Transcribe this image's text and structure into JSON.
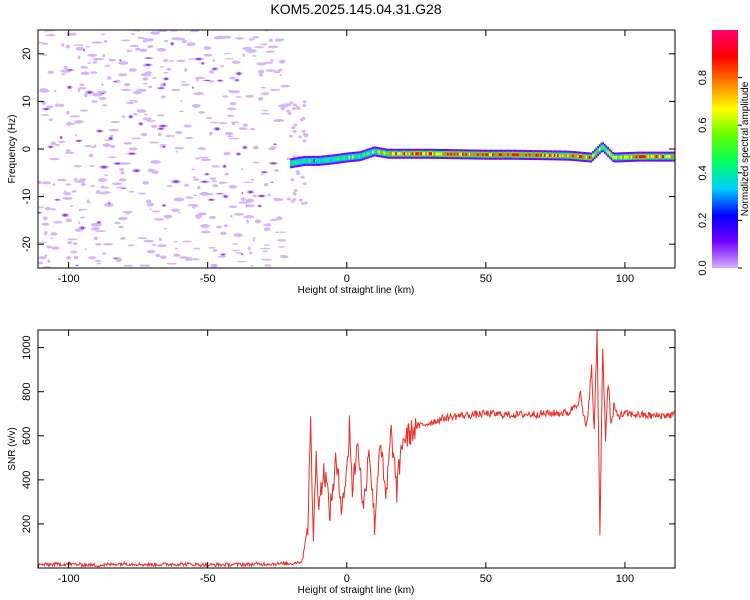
{
  "figure_title": "KOM5.2025.145.04.31.G28",
  "chart_data": [
    {
      "type": "heatmap",
      "xlabel": "Height of straight line (km)",
      "ylabel": "Frequency (Hz)",
      "xlim": [
        -111,
        118
      ],
      "ylim": [
        -25,
        25
      ],
      "xticks": [
        -100,
        -50,
        0,
        50,
        100
      ],
      "yticks": [
        -20,
        -10,
        0,
        10,
        20
      ],
      "colorbar": {
        "label": "Normalized spectral amplitude",
        "range": [
          0,
          1
        ],
        "ticks": [
          "0.0",
          "0.2",
          "0.4",
          "0.6",
          "0.8"
        ],
        "colors": [
          "#d8b0ff",
          "#7000ff",
          "#0000ff",
          "#00d0ff",
          "#00ff60",
          "#60ff00",
          "#ffff00",
          "#ff8000",
          "#ff0000",
          "#ff0070"
        ]
      },
      "noise_region_x": [
        -111,
        -22
      ],
      "signal_track": [
        {
          "x": -20,
          "freq": -3,
          "amp": 0.35
        },
        {
          "x": -15,
          "freq": -2.5,
          "amp": 0.45
        },
        {
          "x": -10,
          "freq": -2.5,
          "amp": 0.35
        },
        {
          "x": -5,
          "freq": -2.2,
          "amp": 0.4
        },
        {
          "x": 0,
          "freq": -1.8,
          "amp": 0.5
        },
        {
          "x": 5,
          "freq": -1.5,
          "amp": 0.45
        },
        {
          "x": 10,
          "freq": -0.5,
          "amp": 0.5
        },
        {
          "x": 15,
          "freq": -1.0,
          "amp": 0.7
        },
        {
          "x": 20,
          "freq": -1.0,
          "amp": 0.75
        },
        {
          "x": 30,
          "freq": -1.0,
          "amp": 0.8
        },
        {
          "x": 40,
          "freq": -1.1,
          "amp": 0.85
        },
        {
          "x": 50,
          "freq": -1.2,
          "amp": 0.8
        },
        {
          "x": 60,
          "freq": -1.2,
          "amp": 0.85
        },
        {
          "x": 70,
          "freq": -1.3,
          "amp": 0.8
        },
        {
          "x": 80,
          "freq": -1.4,
          "amp": 0.75
        },
        {
          "x": 88,
          "freq": -1.8,
          "amp": 0.85
        },
        {
          "x": 92,
          "freq": 0.5,
          "amp": 0.4
        },
        {
          "x": 96,
          "freq": -1.8,
          "amp": 0.6
        },
        {
          "x": 105,
          "freq": -1.6,
          "amp": 0.8
        },
        {
          "x": 118,
          "freq": -1.6,
          "amp": 0.7
        }
      ]
    },
    {
      "type": "line",
      "xlabel": "Height of straight line (km)",
      "ylabel": "SNR (v/v)",
      "xlim": [
        -111,
        118
      ],
      "ylim": [
        0,
        1080
      ],
      "xticks": [
        -100,
        -50,
        0,
        50,
        100
      ],
      "yticks": [
        200,
        400,
        600,
        800,
        1000
      ],
      "line_color": "#e8302a",
      "series": [
        {
          "x": [
            -111,
            -100,
            -90,
            -80,
            -70,
            -60,
            -50,
            -40,
            -30,
            -20,
            -16,
            -14,
            -13,
            -12,
            -11,
            -10,
            -8,
            -6,
            -4,
            -2,
            0,
            1,
            2,
            4,
            6,
            8,
            10,
            12,
            14,
            16,
            18,
            20,
            22,
            25,
            30,
            35,
            40,
            50,
            60,
            70,
            80,
            84,
            86,
            88,
            89,
            90,
            91,
            92,
            93,
            94,
            95,
            96,
            98,
            100,
            110,
            118
          ],
          "y": [
            15,
            18,
            12,
            20,
            15,
            18,
            14,
            16,
            18,
            20,
            30,
            200,
            640,
            150,
            500,
            300,
            450,
            250,
            480,
            300,
            420,
            670,
            350,
            580,
            250,
            560,
            200,
            600,
            300,
            620,
            350,
            580,
            600,
            640,
            660,
            680,
            690,
            700,
            695,
            700,
            705,
            780,
            620,
            900,
            620,
            1080,
            160,
            1000,
            600,
            850,
            640,
            720,
            690,
            700,
            690,
            695
          ]
        }
      ]
    }
  ]
}
